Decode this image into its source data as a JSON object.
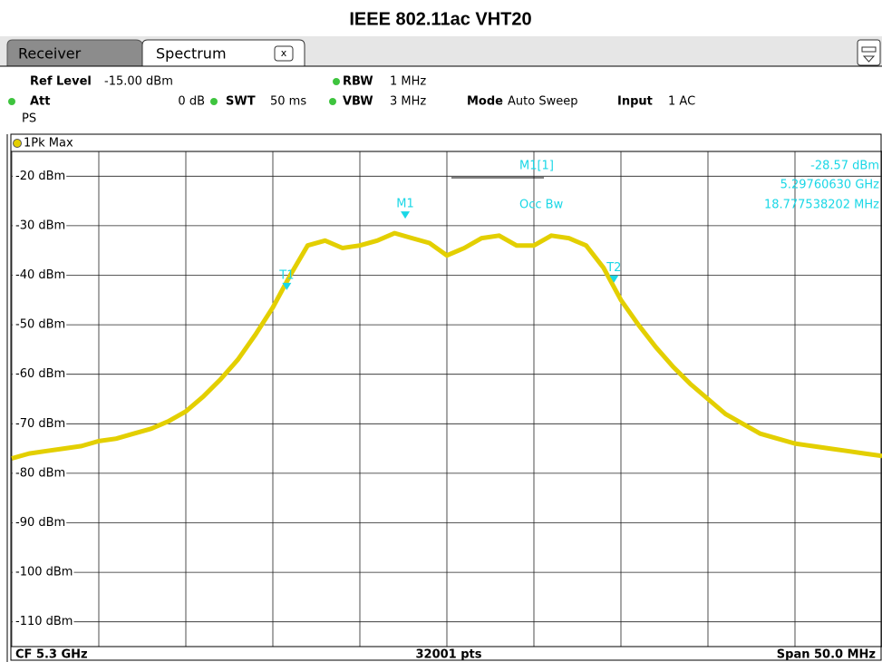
{
  "header": {
    "title": "IEEE 802.11ac VHT20"
  },
  "tabs": [
    "Receiver",
    "Spectrum"
  ],
  "settings": {
    "ref_level_label": "Ref Level",
    "ref_level": "-15.00 dBm",
    "att_label": "Att",
    "att": "0 dB",
    "swt_label": "SWT",
    "swt": "50 ms",
    "rbw_label": "RBW",
    "rbw": "1 MHz",
    "vbw_label": "VBW",
    "vbw": "3 MHz",
    "mode_label": "Mode",
    "mode": "Auto Sweep",
    "input_label": "Input",
    "input": "1 AC",
    "ps": "PS"
  },
  "readout": {
    "marker": "M1[1]",
    "level": "-28.57 dBm",
    "freq": "5.29760630 GHz",
    "occ_label": "Occ Bw",
    "occ": "18.777538202 MHz"
  },
  "footer": {
    "cf": "CF 5.3 GHz",
    "pts": "32001 pts",
    "span": "Span 50.0 MHz"
  },
  "chart_data": {
    "type": "line",
    "xlim": [
      5.275,
      5.325
    ],
    "xticks": [
      5.275,
      5.28,
      5.285,
      5.29,
      5.295,
      5.3,
      5.305,
      5.31,
      5.315,
      5.32,
      5.325
    ],
    "ylim": [
      -115,
      -15
    ],
    "yticks": [
      {
        "value": -20,
        "label": "-20 dBm"
      },
      {
        "value": -30,
        "label": "-30 dBm"
      },
      {
        "value": -40,
        "label": "-40 dBm"
      },
      {
        "value": -50,
        "label": "-50 dBm"
      },
      {
        "value": -60,
        "label": "-60 dBm"
      },
      {
        "value": -70,
        "label": "-70 dBm"
      },
      {
        "value": -80,
        "label": "-80 dBm"
      },
      {
        "value": -90,
        "label": "-90 dBm"
      },
      {
        "value": -100,
        "label": "-100 dBm"
      },
      {
        "value": -110,
        "label": "-110 dBm"
      }
    ],
    "grid": true,
    "series": [
      {
        "name": "1Pk Max",
        "color": "#e3cf00",
        "x": [
          5.275,
          5.276,
          5.277,
          5.278,
          5.279,
          5.28,
          5.281,
          5.282,
          5.283,
          5.284,
          5.285,
          5.286,
          5.287,
          5.288,
          5.289,
          5.29,
          5.291,
          5.292,
          5.293,
          5.294,
          5.295,
          5.296,
          5.297,
          5.298,
          5.299,
          5.3,
          5.301,
          5.302,
          5.303,
          5.304,
          5.305,
          5.306,
          5.307,
          5.308,
          5.309,
          5.31,
          5.311,
          5.312,
          5.313,
          5.314,
          5.315,
          5.316,
          5.317,
          5.318,
          5.319,
          5.32,
          5.321,
          5.322,
          5.323,
          5.324,
          5.325
        ],
        "values": [
          -77,
          -76,
          -75.5,
          -75,
          -74.5,
          -73.5,
          -73,
          -72,
          -71,
          -69.5,
          -67.5,
          -64.5,
          -61,
          -57,
          -52,
          -46.5,
          -40,
          -34,
          -33,
          -34.5,
          -34,
          -33,
          -31.5,
          -32.5,
          -33.5,
          -36,
          -34.5,
          -32.5,
          -32,
          -34,
          -34,
          -32,
          -32.5,
          -34,
          -38.5,
          -45,
          -50,
          -54.5,
          -58.5,
          -62,
          -65,
          -68,
          -70,
          -72,
          -73,
          -74,
          -74.5,
          -75,
          -75.5,
          -76,
          -76.5
        ]
      }
    ],
    "markers": [
      {
        "label": "M1",
        "x": 5.2976063,
        "y": -28.57
      },
      {
        "label": "T1",
        "x": 5.2908,
        "y": -43
      },
      {
        "label": "T2",
        "x": 5.3096,
        "y": -41.5
      }
    ]
  }
}
